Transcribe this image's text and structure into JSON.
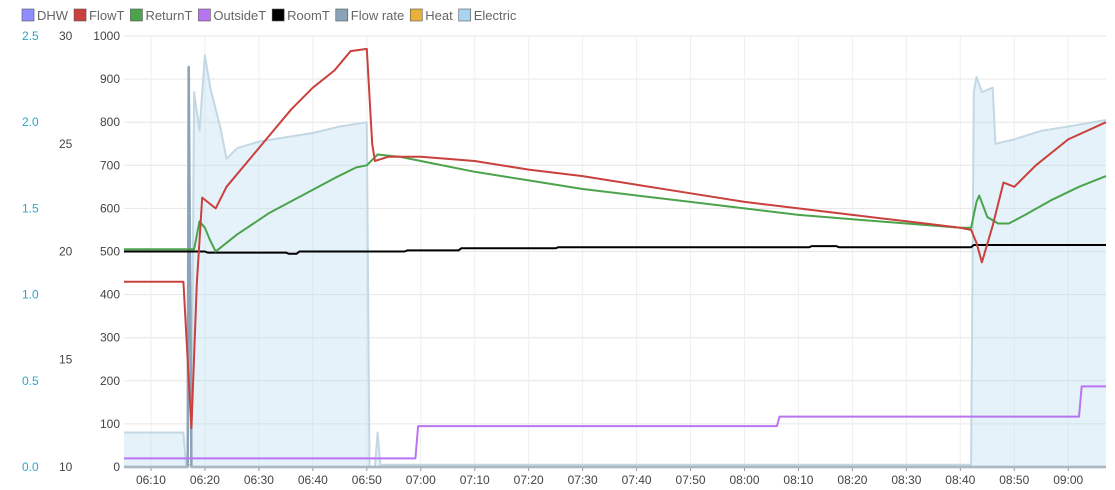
{
  "chart_data": {
    "type": "line",
    "grid": true,
    "legend_position": "top-left",
    "legend": [
      {
        "name": "DHW",
        "color": "#8d8dff"
      },
      {
        "name": "FlowT",
        "color": "#c9403c"
      },
      {
        "name": "ReturnT",
        "color": "#4ba34b"
      },
      {
        "name": "OutsideT",
        "color": "#b974f2"
      },
      {
        "name": "RoomT",
        "color": "#000000"
      },
      {
        "name": "Flow rate",
        "color": "#8aa3b8"
      },
      {
        "name": "Heat",
        "color": "#e8b23a"
      },
      {
        "name": "Electric",
        "color": "#a9d3f0"
      }
    ],
    "axes": {
      "flow_rate": {
        "ticks": [
          "0.0",
          "0.5",
          "1.0",
          "1.5",
          "2.0",
          "2.5"
        ],
        "range": [
          0,
          2.5
        ],
        "color": "#2aa7c9"
      },
      "temperature": {
        "ticks": [
          "10",
          "15",
          "20",
          "25",
          "30"
        ],
        "range": [
          10,
          30
        ]
      },
      "power": {
        "ticks": [
          "0",
          "100",
          "200",
          "300",
          "400",
          "500",
          "600",
          "700",
          "800",
          "900",
          "1000"
        ],
        "range": [
          0,
          1000
        ]
      },
      "time": {
        "ticks": [
          "06:10",
          "06:20",
          "06:30",
          "06:40",
          "06:50",
          "07:00",
          "07:10",
          "07:20",
          "07:30",
          "07:40",
          "07:50",
          "08:00",
          "08:10",
          "08:20",
          "08:30",
          "08:40",
          "08:50",
          "09:00"
        ],
        "range_minutes": [
          365,
          547
        ]
      }
    },
    "series": [
      {
        "name": "FlowT",
        "axis": "temperature",
        "color": "#c9403c",
        "points": [
          [
            365,
            18.6
          ],
          [
            376,
            18.6
          ],
          [
            377.5,
            11.8
          ],
          [
            378.5,
            18.5
          ],
          [
            379.5,
            22.5
          ],
          [
            381,
            22.2
          ],
          [
            382,
            22.0
          ],
          [
            384,
            23.0
          ],
          [
            388,
            24.2
          ],
          [
            392,
            25.4
          ],
          [
            396,
            26.6
          ],
          [
            400,
            27.6
          ],
          [
            404,
            28.4
          ],
          [
            407,
            29.3
          ],
          [
            410,
            29.4
          ],
          [
            411,
            25.0
          ],
          [
            411.5,
            24.2
          ],
          [
            414,
            24.4
          ],
          [
            420,
            24.4
          ],
          [
            430,
            24.2
          ],
          [
            440,
            23.8
          ],
          [
            450,
            23.5
          ],
          [
            460,
            23.1
          ],
          [
            470,
            22.7
          ],
          [
            480,
            22.3
          ],
          [
            490,
            22.0
          ],
          [
            500,
            21.7
          ],
          [
            510,
            21.4
          ],
          [
            520,
            21.1
          ],
          [
            522,
            21.0
          ],
          [
            523,
            20.4
          ],
          [
            524,
            19.5
          ],
          [
            526,
            21.2
          ],
          [
            528,
            23.2
          ],
          [
            530,
            23.0
          ],
          [
            534,
            24.0
          ],
          [
            540,
            25.2
          ],
          [
            547,
            26.0
          ]
        ]
      },
      {
        "name": "ReturnT",
        "axis": "temperature",
        "color": "#4ba34b",
        "points": [
          [
            365,
            20.1
          ],
          [
            378,
            20.1
          ],
          [
            379,
            21.4
          ],
          [
            380,
            21.1
          ],
          [
            381,
            20.5
          ],
          [
            382,
            20.0
          ],
          [
            383,
            20.2
          ],
          [
            386,
            20.8
          ],
          [
            392,
            21.8
          ],
          [
            398,
            22.6
          ],
          [
            404,
            23.4
          ],
          [
            408,
            23.9
          ],
          [
            410,
            24.0
          ],
          [
            412,
            24.5
          ],
          [
            416,
            24.4
          ],
          [
            420,
            24.2
          ],
          [
            430,
            23.7
          ],
          [
            440,
            23.3
          ],
          [
            450,
            22.9
          ],
          [
            460,
            22.6
          ],
          [
            470,
            22.3
          ],
          [
            480,
            22.0
          ],
          [
            490,
            21.7
          ],
          [
            500,
            21.5
          ],
          [
            510,
            21.3
          ],
          [
            520,
            21.1
          ],
          [
            522,
            21.1
          ],
          [
            523,
            22.3
          ],
          [
            523.5,
            22.6
          ],
          [
            525,
            21.6
          ],
          [
            527,
            21.3
          ],
          [
            529,
            21.3
          ],
          [
            532,
            21.7
          ],
          [
            537,
            22.4
          ],
          [
            542,
            23.0
          ],
          [
            547,
            23.5
          ]
        ]
      },
      {
        "name": "RoomT",
        "axis": "temperature",
        "color": "#000000",
        "points": [
          [
            365,
            20.0
          ],
          [
            380,
            20.0
          ],
          [
            380.5,
            19.95
          ],
          [
            395,
            19.95
          ],
          [
            395.5,
            19.9
          ],
          [
            397,
            19.9
          ],
          [
            397.5,
            20.0
          ],
          [
            417,
            20.0
          ],
          [
            417.5,
            20.05
          ],
          [
            427,
            20.05
          ],
          [
            427.5,
            20.15
          ],
          [
            445,
            20.15
          ],
          [
            445.5,
            20.2
          ],
          [
            492,
            20.2
          ],
          [
            492.5,
            20.25
          ],
          [
            497,
            20.25
          ],
          [
            497.5,
            20.2
          ],
          [
            522,
            20.2
          ],
          [
            522.5,
            20.3
          ],
          [
            547,
            20.3
          ]
        ]
      },
      {
        "name": "OutsideT",
        "axis": "power",
        "color": "#b974f2",
        "points": [
          [
            365,
            20
          ],
          [
            419,
            20
          ],
          [
            419.5,
            95
          ],
          [
            486,
            95
          ],
          [
            486.5,
            117
          ],
          [
            542,
            117
          ],
          [
            542.5,
            187
          ],
          [
            547,
            187
          ]
        ]
      },
      {
        "name": "Electric",
        "axis": "power",
        "color": "#a9d3f0",
        "fill": true,
        "points": [
          [
            365,
            80
          ],
          [
            376,
            80
          ],
          [
            376.5,
            5
          ],
          [
            377.5,
            5
          ],
          [
            378,
            870
          ],
          [
            379,
            780
          ],
          [
            380,
            955
          ],
          [
            381,
            880
          ],
          [
            383,
            780
          ],
          [
            384,
            715
          ],
          [
            386,
            740
          ],
          [
            390,
            755
          ],
          [
            395,
            765
          ],
          [
            400,
            775
          ],
          [
            405,
            790
          ],
          [
            410,
            800
          ],
          [
            410.5,
            0
          ],
          [
            411.5,
            0
          ],
          [
            412,
            80
          ],
          [
            412.5,
            5
          ],
          [
            522,
            5
          ],
          [
            522.5,
            870
          ],
          [
            523,
            905
          ],
          [
            524,
            870
          ],
          [
            526,
            880
          ],
          [
            526.5,
            750
          ],
          [
            530,
            760
          ],
          [
            535,
            780
          ],
          [
            540,
            790
          ],
          [
            547,
            805
          ]
        ]
      },
      {
        "name": "Flow rate",
        "axis": "flow_rate",
        "color": "#8aa3b8",
        "points": [
          [
            365,
            0
          ],
          [
            376.8,
            0
          ],
          [
            377,
            2.32
          ],
          [
            377.5,
            0
          ],
          [
            410,
            0
          ],
          [
            547,
            0
          ]
        ]
      }
    ]
  }
}
